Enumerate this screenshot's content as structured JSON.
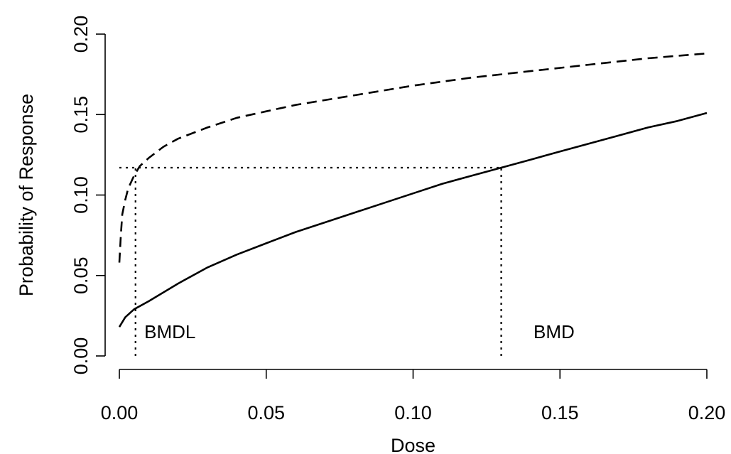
{
  "chart_data": {
    "type": "line",
    "xlabel": "Dose",
    "ylabel": "Probability of Response",
    "xlim": [
      0.0,
      0.2
    ],
    "ylim": [
      0.0,
      0.2
    ],
    "x_ticks": [
      "0.00",
      "0.05",
      "0.10",
      "0.15",
      "0.20"
    ],
    "y_ticks": [
      "0.00",
      "0.05",
      "0.10",
      "0.15",
      "0.20"
    ],
    "grid": false,
    "series": [
      {
        "style": "solid",
        "color": "#000000",
        "x": [
          0.0,
          0.002,
          0.005,
          0.01,
          0.02,
          0.03,
          0.04,
          0.05,
          0.06,
          0.07,
          0.08,
          0.09,
          0.1,
          0.11,
          0.12,
          0.13,
          0.14,
          0.15,
          0.16,
          0.17,
          0.18,
          0.19,
          0.2
        ],
        "y": [
          0.018,
          0.024,
          0.029,
          0.034,
          0.045,
          0.055,
          0.063,
          0.07,
          0.077,
          0.083,
          0.089,
          0.095,
          0.101,
          0.107,
          0.112,
          0.117,
          0.122,
          0.127,
          0.132,
          0.137,
          0.142,
          0.146,
          0.151
        ]
      },
      {
        "style": "dashed",
        "color": "#000000",
        "x": [
          0.0,
          0.0005,
          0.001,
          0.002,
          0.003,
          0.005,
          0.007,
          0.01,
          0.015,
          0.02,
          0.03,
          0.04,
          0.05,
          0.06,
          0.08,
          0.1,
          0.12,
          0.14,
          0.16,
          0.18,
          0.2
        ],
        "y": [
          0.058,
          0.075,
          0.088,
          0.097,
          0.104,
          0.112,
          0.118,
          0.123,
          0.13,
          0.135,
          0.142,
          0.148,
          0.152,
          0.156,
          0.162,
          0.168,
          0.173,
          0.177,
          0.181,
          0.185,
          0.188
        ]
      }
    ],
    "reference_level": 0.117,
    "reference_lines": [
      {
        "type": "horizontal",
        "y": 0.117,
        "x_range": [
          0.0,
          0.13
        ],
        "style": "dotted"
      },
      {
        "type": "vertical",
        "x": 0.0055,
        "y_range": [
          0.0,
          0.117
        ],
        "style": "dotted"
      },
      {
        "type": "vertical",
        "x": 0.13,
        "y_range": [
          0.0,
          0.117
        ],
        "style": "dotted"
      }
    ],
    "annotations": [
      {
        "text": "BMDL",
        "x": 0.0085,
        "y": 0.011
      },
      {
        "text": "BMD",
        "x": 0.141,
        "y": 0.011
      }
    ]
  }
}
